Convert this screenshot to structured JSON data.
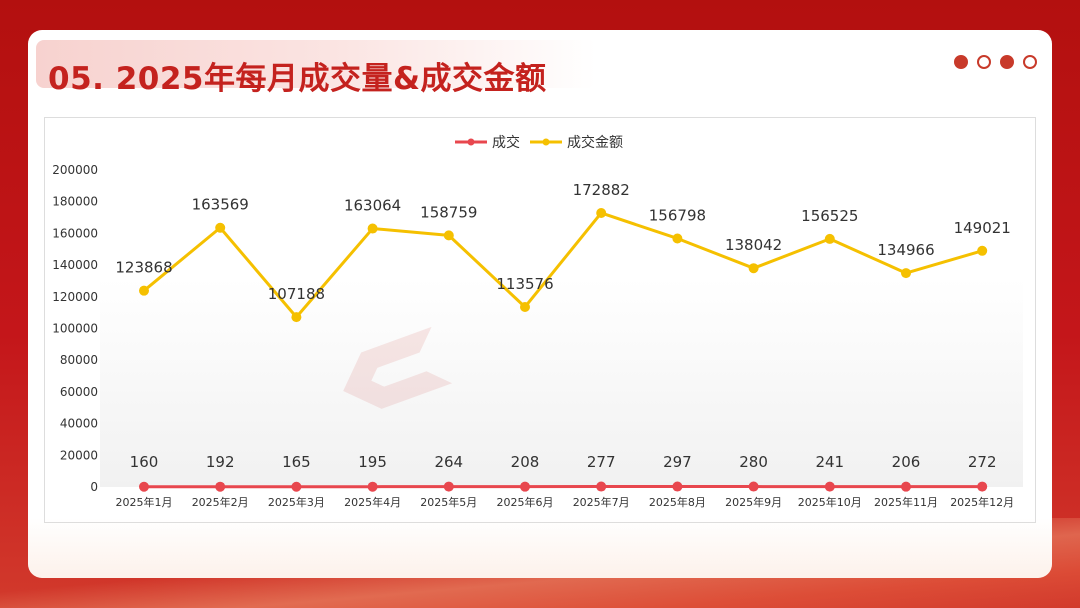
{
  "slide": {
    "title": "05. 2025年每月成交量&成交金额",
    "indicator_dots": [
      true,
      false,
      true,
      false
    ]
  },
  "colors": {
    "accent": "#c4221e",
    "series_count": "#e8474e",
    "series_amount": "#f5c000"
  },
  "chart_data": {
    "type": "line",
    "categories": [
      "2025年1月",
      "2025年2月",
      "2025年3月",
      "2025年4月",
      "2025年5月",
      "2025年6月",
      "2025年7月",
      "2025年8月",
      "2025年9月",
      "2025年10月",
      "2025年11月",
      "2025年12月"
    ],
    "series": [
      {
        "name": "成交",
        "color": "#e8474e",
        "values": [
          160,
          192,
          165,
          195,
          264,
          208,
          277,
          297,
          280,
          241,
          206,
          272
        ]
      },
      {
        "name": "成交金额",
        "color": "#f5c000",
        "values": [
          123868,
          163569,
          107188,
          163064,
          158759,
          113576,
          172882,
          156798,
          138042,
          156525,
          134966,
          149021
        ]
      }
    ],
    "yticks": [
      "0",
      "20000",
      "40000",
      "60000",
      "80000",
      "100000",
      "120000",
      "140000",
      "160000",
      "180000",
      "200000"
    ],
    "ylim": [
      0,
      200000
    ],
    "legend": "top-center",
    "grid": false
  }
}
